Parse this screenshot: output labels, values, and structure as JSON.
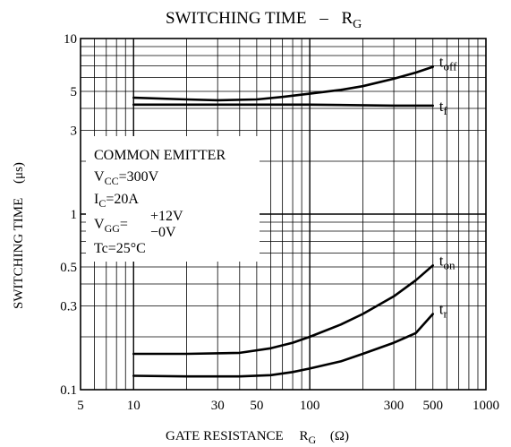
{
  "chart_data": {
    "type": "line",
    "title": "SWITCHING TIME",
    "title_dash": "–",
    "title_symbol": {
      "main": "R",
      "sub": "G"
    },
    "xlabel": {
      "text": "GATE RESISTANCE",
      "symbol_main": "R",
      "symbol_sub": "G",
      "unit": "(Ω)"
    },
    "ylabel": {
      "text": "SWITCHING TIME",
      "unit": "(μs)"
    },
    "xscale": "log",
    "yscale": "log",
    "xlim": [
      5,
      1000
    ],
    "ylim": [
      0.1,
      10
    ],
    "grid": true,
    "x_ticks": [
      {
        "value": 5,
        "label": "5"
      },
      {
        "value": 10,
        "label": "10"
      },
      {
        "value": 30,
        "label": "30"
      },
      {
        "value": 50,
        "label": "50"
      },
      {
        "value": 100,
        "label": "100"
      },
      {
        "value": 300,
        "label": "300"
      },
      {
        "value": 500,
        "label": "500"
      },
      {
        "value": 1000,
        "label": "1000"
      }
    ],
    "y_ticks": [
      {
        "value": 0.1,
        "label": "0.1"
      },
      {
        "value": 0.3,
        "label": "0.3"
      },
      {
        "value": 0.5,
        "label": "0.5"
      },
      {
        "value": 1,
        "label": "1"
      },
      {
        "value": 3,
        "label": "3"
      },
      {
        "value": 5,
        "label": "5"
      },
      {
        "value": 10,
        "label": "10"
      }
    ],
    "annotation": {
      "lines": [
        {
          "main": "COMMON EMITTER"
        },
        {
          "main": "V",
          "sub": "CC",
          "rest": "=300V"
        },
        {
          "main": "I",
          "sub": "C",
          "rest": "=20A"
        },
        {
          "main": "V",
          "sub": "GG",
          "rest": "=",
          "upper": "+12V",
          "lower": "−0V"
        },
        {
          "main": "Tc=25°C"
        }
      ]
    },
    "series": [
      {
        "label_main": "t",
        "label_sub": "off",
        "x": [
          10,
          20,
          30,
          50,
          70,
          100,
          150,
          200,
          300,
          400,
          500
        ],
        "y": [
          4.6,
          4.5,
          4.45,
          4.5,
          4.65,
          4.85,
          5.1,
          5.35,
          5.9,
          6.4,
          6.9
        ]
      },
      {
        "label_main": "t",
        "label_sub": "f",
        "x": [
          10,
          30,
          100,
          300,
          500
        ],
        "y": [
          4.2,
          4.2,
          4.2,
          4.15,
          4.15
        ]
      },
      {
        "label_main": "t",
        "label_sub": "on",
        "x": [
          10,
          20,
          40,
          60,
          80,
          100,
          150,
          200,
          300,
          400,
          500
        ],
        "y": [
          0.16,
          0.16,
          0.162,
          0.172,
          0.185,
          0.2,
          0.235,
          0.27,
          0.34,
          0.42,
          0.51
        ]
      },
      {
        "label_main": "t",
        "label_sub": "r",
        "x": [
          10,
          20,
          40,
          60,
          80,
          100,
          150,
          200,
          300,
          400,
          500
        ],
        "y": [
          0.12,
          0.119,
          0.119,
          0.121,
          0.126,
          0.132,
          0.145,
          0.16,
          0.185,
          0.21,
          0.27
        ]
      }
    ]
  }
}
